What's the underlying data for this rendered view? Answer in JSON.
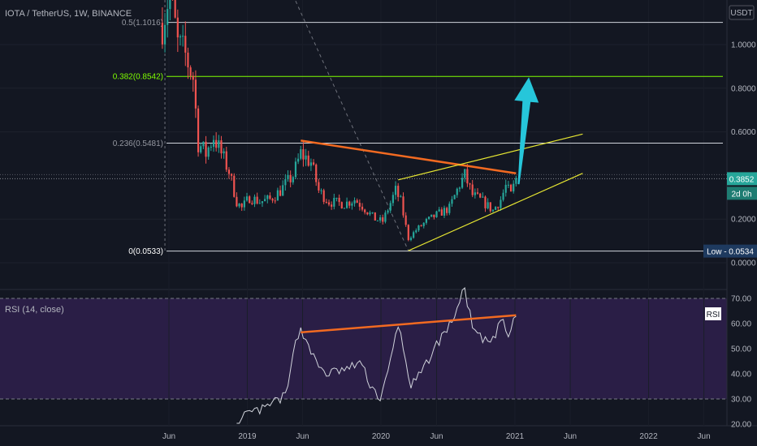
{
  "header": {
    "symbol": "IOTA / TetherUS, 1W, BINANCE",
    "quote": "USDT"
  },
  "price_badge": {
    "value": "0.3852",
    "countdown": "2d 0h"
  },
  "low_label": "Low - 0.0534",
  "rsi_panel": {
    "title": "RSI (14, close)",
    "badge": "RSI"
  },
  "colors": {
    "background": "#131722",
    "up": "#26a69a",
    "down": "#ef5350",
    "fib_green": "#7fff00",
    "trend_orange": "#f26a21",
    "channel_yellow": "#e6e632",
    "arrow": "#26c6da",
    "rsi_line": "#d1d4dc",
    "rsi_fill": "#2a1e46"
  },
  "chart_data": [
    {
      "type": "candlestick",
      "timeframe": "1W",
      "y_axis_ticks": [
        "1.0000",
        "0.8000",
        "0.6000",
        "0.2000",
        "0.0000"
      ],
      "x_axis_ticks": [
        "Jun",
        "2019",
        "Jun",
        "2020",
        "Jun",
        "2021",
        "Jun",
        "2022",
        "Jun"
      ],
      "ylim": [
        -0.02,
        1.2
      ],
      "fib_levels": [
        {
          "label": "0.5(1.1016)",
          "value": 1.1016
        },
        {
          "label": "0.382(0.8542)",
          "value": 0.8542
        },
        {
          "label": "0.236(0.5481)",
          "value": 0.5481
        },
        {
          "label": "0(0.0533)",
          "value": 0.0533
        }
      ],
      "last_price": 0.3852,
      "low": 0.0534,
      "price_path": [
        [
          "2018-05-14",
          1.1
        ],
        [
          "2018-06-04",
          1.25
        ],
        [
          "2018-06-25",
          1.0
        ],
        [
          "2018-07-16",
          0.95
        ],
        [
          "2018-08-06",
          0.85
        ],
        [
          "2018-08-20",
          0.55
        ],
        [
          "2018-09-10",
          0.5
        ],
        [
          "2018-10-01",
          0.58
        ],
        [
          "2018-10-22",
          0.5
        ],
        [
          "2018-11-12",
          0.42
        ],
        [
          "2018-12-03",
          0.28
        ],
        [
          "2018-12-17",
          0.25
        ],
        [
          "2019-01-07",
          0.3
        ],
        [
          "2019-02-04",
          0.28
        ],
        [
          "2019-03-04",
          0.29
        ],
        [
          "2019-04-01",
          0.33
        ],
        [
          "2019-05-06",
          0.4
        ],
        [
          "2019-05-27",
          0.5
        ],
        [
          "2019-06-24",
          0.46
        ],
        [
          "2019-07-15",
          0.33
        ],
        [
          "2019-08-12",
          0.28
        ],
        [
          "2019-09-23",
          0.27
        ],
        [
          "2019-10-21",
          0.29
        ],
        [
          "2019-11-11",
          0.26
        ],
        [
          "2019-12-16",
          0.2
        ],
        [
          "2020-01-06",
          0.19
        ],
        [
          "2020-02-10",
          0.33
        ],
        [
          "2020-02-24",
          0.28
        ],
        [
          "2020-03-16",
          0.11
        ],
        [
          "2020-04-06",
          0.15
        ],
        [
          "2020-05-04",
          0.19
        ],
        [
          "2020-06-01",
          0.22
        ],
        [
          "2020-07-06",
          0.25
        ],
        [
          "2020-08-03",
          0.36
        ],
        [
          "2020-08-17",
          0.4
        ],
        [
          "2020-09-07",
          0.31
        ],
        [
          "2020-10-05",
          0.28
        ],
        [
          "2020-11-02",
          0.24
        ],
        [
          "2020-11-23",
          0.29
        ],
        [
          "2020-12-07",
          0.35
        ],
        [
          "2020-12-21",
          0.31
        ],
        [
          "2021-01-04",
          0.3852
        ]
      ],
      "annotations": [
        {
          "type": "trendline",
          "color": "orange",
          "from": [
            "2019-05-27",
            0.56
          ],
          "to": [
            "2021-01-04",
            0.41
          ]
        },
        {
          "type": "channel_upper",
          "color": "yellow",
          "from": [
            "2020-02-17",
            0.38
          ],
          "to": [
            "2021-07-05",
            0.59
          ]
        },
        {
          "type": "channel_lower",
          "color": "yellow",
          "from": [
            "2020-03-16",
            0.055
          ],
          "to": [
            "2021-07-05",
            0.41
          ]
        },
        {
          "type": "arrow",
          "color": "cyan",
          "from": [
            "2021-01-11",
            0.36
          ],
          "to": [
            "2021-02-08",
            0.85
          ]
        },
        {
          "type": "dashed_line",
          "from": [
            "2019-05-13",
            1.2
          ],
          "to": [
            "2020-03-16",
            0.055
          ]
        },
        {
          "type": "vertical_dashed",
          "at": "2018-05-21"
        }
      ]
    },
    {
      "type": "line",
      "title": "RSI (14, close)",
      "y_axis_ticks": [
        "70.00",
        "60.00",
        "50.00",
        "40.00",
        "30.00",
        "20.00"
      ],
      "ylim": [
        16,
        74
      ],
      "bands": [
        30,
        70
      ],
      "series": [
        {
          "values": [
            [
              "2018-12-03",
              17
            ],
            [
              "2018-12-24",
              23
            ],
            [
              "2019-01-21",
              25
            ],
            [
              "2019-02-18",
              26
            ],
            [
              "2019-03-18",
              29
            ],
            [
              "2019-04-15",
              31
            ],
            [
              "2019-04-29",
              40
            ],
            [
              "2019-05-13",
              55
            ],
            [
              "2019-05-27",
              57
            ],
            [
              "2019-06-17",
              52
            ],
            [
              "2019-07-08",
              44
            ],
            [
              "2019-08-05",
              40
            ],
            [
              "2019-09-02",
              41
            ],
            [
              "2019-10-07",
              42
            ],
            [
              "2019-11-04",
              45
            ],
            [
              "2019-12-02",
              36
            ],
            [
              "2019-12-30",
              30
            ],
            [
              "2020-01-20",
              40
            ],
            [
              "2020-02-17",
              60
            ],
            [
              "2020-03-09",
              45
            ],
            [
              "2020-03-23",
              35
            ],
            [
              "2020-04-20",
              40
            ],
            [
              "2020-05-18",
              48
            ],
            [
              "2020-06-15",
              55
            ],
            [
              "2020-07-06",
              59
            ],
            [
              "2020-07-27",
              66
            ],
            [
              "2020-08-17",
              74
            ],
            [
              "2020-09-07",
              58
            ],
            [
              "2020-10-05",
              53
            ],
            [
              "2020-11-02",
              53
            ],
            [
              "2020-11-23",
              62
            ],
            [
              "2020-12-14",
              55
            ],
            [
              "2021-01-04",
              63
            ]
          ]
        }
      ],
      "annotations": [
        {
          "type": "trendline",
          "color": "orange",
          "from": [
            "2019-05-27",
            56.5
          ],
          "to": [
            "2021-01-04",
            63.3
          ]
        }
      ]
    }
  ]
}
